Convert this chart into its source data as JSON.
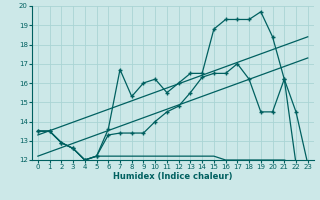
{
  "xlabel": "Humidex (Indice chaleur)",
  "bg_color": "#cce8e8",
  "grid_color": "#aad4d4",
  "line_color": "#006060",
  "xlim": [
    -0.5,
    23.5
  ],
  "ylim": [
    12,
    20
  ],
  "xticks": [
    0,
    1,
    2,
    3,
    4,
    5,
    6,
    7,
    8,
    9,
    10,
    11,
    12,
    13,
    14,
    15,
    16,
    17,
    18,
    19,
    20,
    21,
    22,
    23
  ],
  "yticks": [
    12,
    13,
    14,
    15,
    16,
    17,
    18,
    19,
    20
  ],
  "line1_x": [
    0,
    1,
    2,
    3,
    4,
    4,
    5,
    6,
    7,
    8,
    9,
    10,
    11,
    12,
    13,
    14,
    15,
    16,
    17,
    18,
    19,
    20,
    21,
    22,
    23
  ],
  "line1_y": [
    13.5,
    13.5,
    12.9,
    12.6,
    12.0,
    12.0,
    12.2,
    12.2,
    12.2,
    12.2,
    12.2,
    12.2,
    12.2,
    12.2,
    12.2,
    12.2,
    12.2,
    12.0,
    12.0,
    12.0,
    12.0,
    12.0,
    12.0,
    11.8,
    11.8
  ],
  "line2_x": [
    0,
    1,
    2,
    3,
    4,
    5,
    6,
    7,
    8,
    9,
    10,
    11,
    12,
    13,
    14,
    15,
    16,
    17,
    18,
    19,
    20,
    21,
    22,
    23
  ],
  "line2_y": [
    13.5,
    13.5,
    12.9,
    12.6,
    12.0,
    12.2,
    13.3,
    13.4,
    13.4,
    13.4,
    14.0,
    14.5,
    14.8,
    15.5,
    16.3,
    16.5,
    16.5,
    17.0,
    16.2,
    14.5,
    14.5,
    16.2,
    11.8,
    11.8
  ],
  "line3_x": [
    0,
    1,
    2,
    3,
    4,
    5,
    6,
    7,
    8,
    9,
    10,
    11,
    12,
    13,
    14,
    15,
    16,
    17,
    18,
    19,
    20,
    21,
    22,
    23
  ],
  "line3_y": [
    13.5,
    13.5,
    12.9,
    12.6,
    12.0,
    12.2,
    13.6,
    16.7,
    15.3,
    16.0,
    16.2,
    15.5,
    16.0,
    16.5,
    16.5,
    18.8,
    19.3,
    19.3,
    19.3,
    19.7,
    18.4,
    16.2,
    14.5,
    11.8
  ],
  "line4_x": [
    0,
    23
  ],
  "line4_y": [
    13.3,
    18.4
  ],
  "line5_x": [
    0,
    23
  ],
  "line5_y": [
    12.2,
    17.3
  ]
}
